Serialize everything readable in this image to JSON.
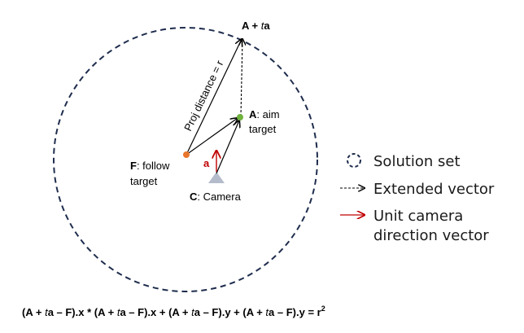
{
  "diagram": {
    "top_label": {
      "prefix": "A + ",
      "italic": "t",
      "suffix": "a"
    },
    "proj_label": "Proj distance = r",
    "aim_label": {
      "bold": "A",
      "line1": ": aim",
      "line2": "target"
    },
    "follow_label": {
      "bold": "F",
      "line1": ": follow",
      "line2": "target"
    },
    "camera_label": {
      "bold": "C",
      "rest": ": Camera"
    },
    "unit_vector_label": "a",
    "colors": {
      "circle": "#1f2d4d",
      "arrow": "#000000",
      "unit_vector": "#c00000",
      "aim_point": "#6fb23e",
      "follow_point": "#e8762c",
      "camera": "#b4bccb"
    }
  },
  "legend": {
    "items": [
      {
        "icon": "dashed-circle-icon",
        "label": "Solution set"
      },
      {
        "icon": "dashed-arrow-icon",
        "label": "Extended vector"
      },
      {
        "icon": "red-arrow-icon",
        "label": "Unit camera"
      }
    ],
    "continuation": "direction vector"
  },
  "formula": {
    "segments": [
      {
        "text": "(A + ",
        "italic": false
      },
      {
        "text": "t",
        "italic": true
      },
      {
        "text": "a – F).x * (A + ",
        "italic": false
      },
      {
        "text": "t",
        "italic": true
      },
      {
        "text": "a – F).x + (A + ",
        "italic": false
      },
      {
        "text": "t",
        "italic": true
      },
      {
        "text": "a – F).y + (A + ",
        "italic": false
      },
      {
        "text": "t",
        "italic": true
      },
      {
        "text": "a – F).y = r",
        "italic": false
      }
    ],
    "superscript": "2"
  }
}
